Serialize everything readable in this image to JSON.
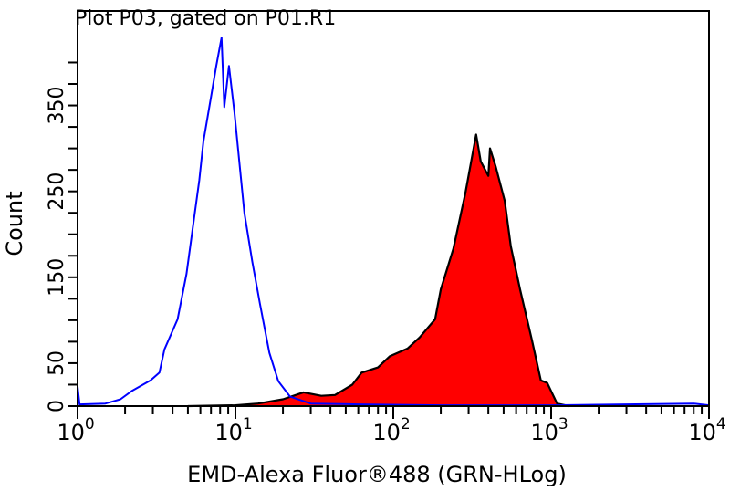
{
  "chart_data": {
    "type": "area",
    "title": "Plot P03, gated on P01.R1",
    "xlabel": "EMD-Alexa Fluor®488 (GRN-HLog)",
    "ylabel": "Count",
    "x_scale": "log",
    "xlim": [
      1,
      10000
    ],
    "ylim": [
      0,
      460
    ],
    "x_ticks": [
      {
        "base": "10",
        "exp": "0",
        "value": 1
      },
      {
        "base": "10",
        "exp": "1",
        "value": 10
      },
      {
        "base": "10",
        "exp": "2",
        "value": 100
      },
      {
        "base": "10",
        "exp": "3",
        "value": 1000
      },
      {
        "base": "10",
        "exp": "4",
        "value": 10000
      }
    ],
    "y_tick_labels": [
      "0",
      "50",
      "150",
      "250",
      "350"
    ],
    "y_tick_step": 25,
    "y_tick_max": 400,
    "grid": false,
    "series": [
      {
        "style": "outline",
        "color": "#0000ff",
        "points": [
          [
            1,
            23
          ],
          [
            1.03,
            2
          ],
          [
            1.5,
            3
          ],
          [
            1.87,
            8
          ],
          [
            2.22,
            18
          ],
          [
            2.9,
            30
          ],
          [
            3.3,
            39
          ],
          [
            3.55,
            66
          ],
          [
            4.3,
            101
          ],
          [
            4.9,
            154
          ],
          [
            5.4,
            211
          ],
          [
            5.9,
            263
          ],
          [
            6.27,
            308
          ],
          [
            7.07,
            364
          ],
          [
            7.56,
            396
          ],
          [
            8.17,
            429
          ],
          [
            8.5,
            348
          ],
          [
            9.1,
            396
          ],
          [
            9.85,
            342
          ],
          [
            11.4,
            225
          ],
          [
            12.8,
            168
          ],
          [
            14.3,
            119
          ],
          [
            16.4,
            62
          ],
          [
            18.7,
            29
          ],
          [
            22.2,
            11
          ],
          [
            30,
            3
          ],
          [
            60,
            2
          ],
          [
            200,
            1
          ],
          [
            1000,
            1
          ],
          [
            3000,
            2
          ],
          [
            8000,
            3
          ],
          [
            10000,
            1
          ]
        ]
      },
      {
        "style": "filled",
        "color": "#ff0000",
        "outline": "#000000",
        "points": [
          [
            5,
            0
          ],
          [
            10,
            1
          ],
          [
            13.9,
            3
          ],
          [
            20,
            8
          ],
          [
            27,
            16
          ],
          [
            35,
            12
          ],
          [
            42.7,
            13
          ],
          [
            55,
            25
          ],
          [
            63,
            39
          ],
          [
            80,
            45
          ],
          [
            95,
            58
          ],
          [
            123,
            67
          ],
          [
            147,
            80
          ],
          [
            184,
            101
          ],
          [
            200,
            136
          ],
          [
            240,
            183
          ],
          [
            286,
            248
          ],
          [
            335,
            316
          ],
          [
            358,
            285
          ],
          [
            400,
            268
          ],
          [
            410,
            300
          ],
          [
            445,
            279
          ],
          [
            508,
            239
          ],
          [
            555,
            186
          ],
          [
            635,
            136
          ],
          [
            755,
            77
          ],
          [
            860,
            30
          ],
          [
            945,
            27
          ],
          [
            1090,
            3
          ],
          [
            1300,
            0
          ]
        ]
      }
    ]
  }
}
